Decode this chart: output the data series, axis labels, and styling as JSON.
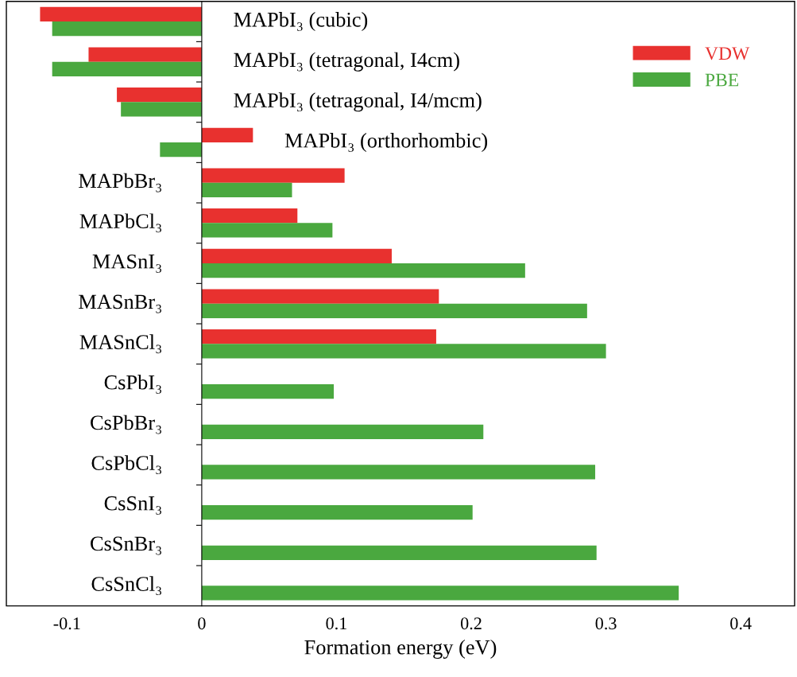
{
  "chart_data": {
    "type": "bar",
    "orientation": "horizontal",
    "xlabel": "Formation energy (eV)",
    "categories": [
      "MAPbI₃ (cubic)",
      "MAPbI₃ (tetragonal, I4cm)",
      "MAPbI₃ (tetragonal, I4/mcm)",
      "MAPbI₃ (orthorhombic)",
      "MAPbBr₃",
      "MAPbCl₃",
      "MASnI₃",
      "MASnBr₃",
      "MASnCl₃",
      "CsPbI₃",
      "CsPbBr₃",
      "CsPbCl₃",
      "CsSnI₃",
      "CsSnBr₃",
      "CsSnCl₃"
    ],
    "series": [
      {
        "name": "VDW",
        "color": "#e8312f",
        "values": [
          -0.12,
          -0.084,
          -0.063,
          0.038,
          0.106,
          0.071,
          0.141,
          0.176,
          0.174,
          null,
          null,
          null,
          null,
          null,
          null
        ]
      },
      {
        "name": "PBE",
        "color": "#4aa83f",
        "values": [
          -0.111,
          -0.111,
          -0.06,
          -0.031,
          0.067,
          0.097,
          0.24,
          0.286,
          0.3,
          0.098,
          0.209,
          0.292,
          0.201,
          0.293,
          0.354
        ]
      }
    ],
    "xlim": [
      -0.145,
      0.44
    ],
    "xticks": [
      -0.1,
      {
        "value": 0,
        "label": "0"
      },
      0.1,
      0.2,
      0.3,
      0.4
    ],
    "legend": "top right",
    "grid": false
  }
}
